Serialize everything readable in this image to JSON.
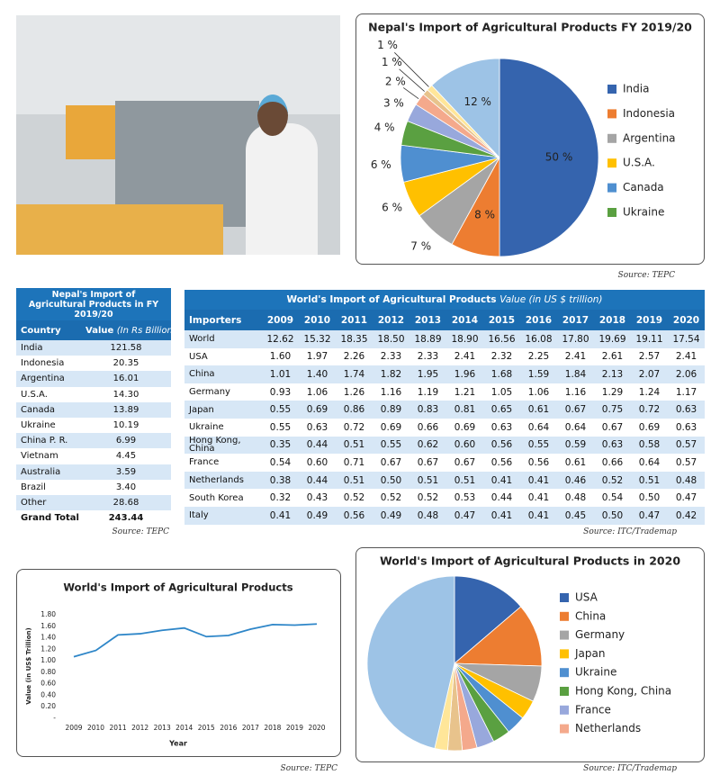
{
  "chart_data": [
    {
      "type": "pie",
      "title": "Nepal's Import of Agricultural Products FY 2019/20",
      "categories": [
        "India",
        "Indonesia",
        "Argentina",
        "U.S.A.",
        "Canada",
        "Ukraine",
        null,
        null,
        null,
        null,
        null
      ],
      "values": [
        50,
        8,
        7,
        6,
        6,
        4,
        3,
        2,
        1,
        1,
        12
      ],
      "value_labels": [
        "50 %",
        "8 %",
        "7 %",
        "6 %",
        "6 %",
        "4 %",
        "3 %",
        "2 %",
        "1 %",
        "1 %",
        "12 %"
      ],
      "colors": [
        "#3564ae",
        "#ed7d31",
        "#a5a5a5",
        "#ffc000",
        "#4f8fd0",
        "#5aa041",
        "#98a8dc",
        "#f4a98c",
        "#e8c38c",
        "#ffe699",
        "#9dc3e6"
      ],
      "legend": "right",
      "source": "Source: TEPC"
    },
    {
      "type": "line",
      "title": "World's Import of Agricultural Products",
      "y_label": "Value (in US$ Trillion)",
      "x_label": "Year",
      "categories": [
        "2009",
        "2010",
        "2011",
        "2012",
        "2013",
        "2014",
        "2015",
        "2016",
        "2017",
        "2018",
        "2019",
        "2020"
      ],
      "values": [
        1.07,
        1.18,
        1.45,
        1.47,
        1.53,
        1.57,
        1.42,
        1.44,
        1.55,
        1.63,
        1.62,
        1.64
      ],
      "color": "#2e86c8",
      "ylim": [
        0,
        1.8
      ],
      "yticks": [
        {
          "value": 0,
          "label": "-"
        },
        {
          "value": 0.2,
          "label": "0.20"
        },
        {
          "value": 0.4,
          "label": "0.40"
        },
        {
          "value": 0.6,
          "label": "0.60"
        },
        {
          "value": 0.8,
          "label": "0.80"
        },
        {
          "value": 1,
          "label": "1.00"
        },
        {
          "value": 1.2,
          "label": "1.20"
        },
        {
          "value": 1.4,
          "label": "1.40"
        },
        {
          "value": 1.6,
          "label": "1.60"
        },
        {
          "value": 1.8,
          "label": "1.80"
        }
      ],
      "source": "Source: TEPC"
    },
    {
      "type": "pie",
      "title": "World's Import of Agricultural  Products in 2020",
      "categories": [
        "USA",
        "China",
        "Germany",
        "Japan",
        "Ukraine",
        "Hong Kong, China",
        "France",
        "Netherlands",
        null,
        null,
        null
      ],
      "values": [
        2.41,
        2.06,
        1.17,
        0.63,
        0.63,
        0.57,
        0.57,
        0.48,
        0.47,
        0.42,
        8.13
      ],
      "colors": [
        "#3564ae",
        "#ed7d31",
        "#a5a5a5",
        "#ffc000",
        "#4f8fd0",
        "#5aa041",
        "#98a8dc",
        "#f4a98c",
        "#e8c38c",
        "#ffe699",
        "#9dc3e6"
      ],
      "legend": "right",
      "source": "Source: ITC/Trademap"
    }
  ],
  "tables": [
    {
      "title": "Nepal's Import of Agricultural Products in FY 2019/20",
      "header": [
        "Country",
        "Value"
      ],
      "unit": "(In Rs Billion)",
      "rows": [
        [
          "India",
          "121.58"
        ],
        [
          "Indonesia",
          "20.35"
        ],
        [
          "Argentina",
          "16.01"
        ],
        [
          "U.S.A.",
          "14.30"
        ],
        [
          "Canada",
          "13.89"
        ],
        [
          "Ukraine",
          "10.19"
        ],
        [
          "China P. R.",
          "6.99"
        ],
        [
          "Vietnam",
          "4.45"
        ],
        [
          "Australia",
          "3.59"
        ],
        [
          "Brazil",
          "3.40"
        ],
        [
          "Other",
          "28.68"
        ],
        [
          "Grand Total",
          "243.44"
        ]
      ],
      "source": "Source: TEPC"
    },
    {
      "title": "World's Import of Agricultural Products",
      "subtitle": "Value (in US $ trillion)",
      "header": [
        "Importers",
        "2009",
        "2010",
        "2011",
        "2012",
        "2013",
        "2014",
        "2015",
        "2016",
        "2017",
        "2018",
        "2019",
        "2020"
      ],
      "rows": [
        [
          "World",
          "12.62",
          "15.32",
          "18.35",
          "18.50",
          "18.89",
          "18.90",
          "16.56",
          "16.08",
          "17.80",
          "19.69",
          "19.11",
          "17.54"
        ],
        [
          "USA",
          "1.60",
          "1.97",
          "2.26",
          "2.33",
          "2.33",
          "2.41",
          "2.32",
          "2.25",
          "2.41",
          "2.61",
          "2.57",
          "2.41"
        ],
        [
          "China",
          "1.01",
          "1.40",
          "1.74",
          "1.82",
          "1.95",
          "1.96",
          "1.68",
          "1.59",
          "1.84",
          "2.13",
          "2.07",
          "2.06"
        ],
        [
          "Germany",
          "0.93",
          "1.06",
          "1.26",
          "1.16",
          "1.19",
          "1.21",
          "1.05",
          "1.06",
          "1.16",
          "1.29",
          "1.24",
          "1.17"
        ],
        [
          "Japan",
          "0.55",
          "0.69",
          "0.86",
          "0.89",
          "0.83",
          "0.81",
          "0.65",
          "0.61",
          "0.67",
          "0.75",
          "0.72",
          "0.63"
        ],
        [
          "Ukraine",
          "0.55",
          "0.63",
          "0.72",
          "0.69",
          "0.66",
          "0.69",
          "0.63",
          "0.64",
          "0.64",
          "0.67",
          "0.69",
          "0.63"
        ],
        [
          "Hong Kong, China",
          "0.35",
          "0.44",
          "0.51",
          "0.55",
          "0.62",
          "0.60",
          "0.56",
          "0.55",
          "0.59",
          "0.63",
          "0.58",
          "0.57"
        ],
        [
          "France",
          "0.54",
          "0.60",
          "0.71",
          "0.67",
          "0.67",
          "0.67",
          "0.56",
          "0.56",
          "0.61",
          "0.66",
          "0.64",
          "0.57"
        ],
        [
          "Netherlands",
          "0.38",
          "0.44",
          "0.51",
          "0.50",
          "0.51",
          "0.51",
          "0.41",
          "0.41",
          "0.46",
          "0.52",
          "0.51",
          "0.48"
        ],
        [
          "South Korea",
          "0.32",
          "0.43",
          "0.52",
          "0.52",
          "0.52",
          "0.53",
          "0.44",
          "0.41",
          "0.48",
          "0.54",
          "0.50",
          "0.47"
        ],
        [
          "Italy",
          "0.41",
          "0.49",
          "0.56",
          "0.49",
          "0.48",
          "0.47",
          "0.41",
          "0.41",
          "0.45",
          "0.50",
          "0.47",
          "0.42"
        ]
      ],
      "source": "Source: ITC/Trademap"
    }
  ]
}
